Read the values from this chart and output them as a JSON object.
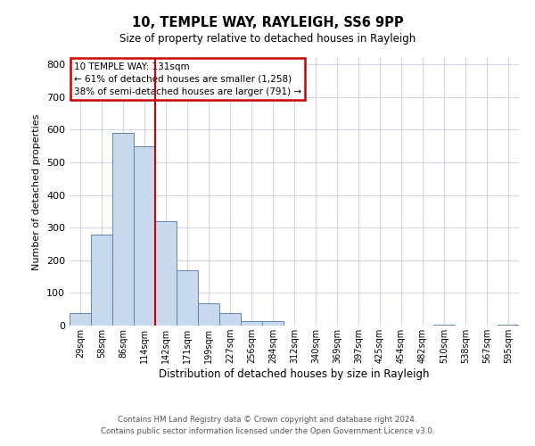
{
  "title1": "10, TEMPLE WAY, RAYLEIGH, SS6 9PP",
  "title2": "Size of property relative to detached houses in Rayleigh",
  "xlabel": "Distribution of detached houses by size in Rayleigh",
  "ylabel": "Number of detached properties",
  "categories": [
    "29sqm",
    "58sqm",
    "86sqm",
    "114sqm",
    "142sqm",
    "171sqm",
    "199sqm",
    "227sqm",
    "256sqm",
    "284sqm",
    "312sqm",
    "340sqm",
    "369sqm",
    "397sqm",
    "425sqm",
    "454sqm",
    "482sqm",
    "510sqm",
    "538sqm",
    "567sqm",
    "595sqm"
  ],
  "values": [
    38,
    280,
    591,
    550,
    321,
    170,
    67,
    37,
    14,
    13,
    0,
    0,
    0,
    0,
    0,
    0,
    0,
    3,
    0,
    0,
    3
  ],
  "bar_color": "#c9d9ed",
  "bar_edge_color": "#5c85b0",
  "vline_color": "#cc0000",
  "annotation_title": "10 TEMPLE WAY: 131sqm",
  "annotation_line1": "← 61% of detached houses are smaller (1,258)",
  "annotation_line2": "38% of semi-detached houses are larger (791) →",
  "annotation_box_color": "#cc0000",
  "ylim": [
    0,
    820
  ],
  "yticks": [
    0,
    100,
    200,
    300,
    400,
    500,
    600,
    700,
    800
  ],
  "footer1": "Contains HM Land Registry data © Crown copyright and database right 2024.",
  "footer2": "Contains public sector information licensed under the Open Government Licence v3.0.",
  "bg_color": "#ffffff",
  "grid_color": "#d0d8e8"
}
